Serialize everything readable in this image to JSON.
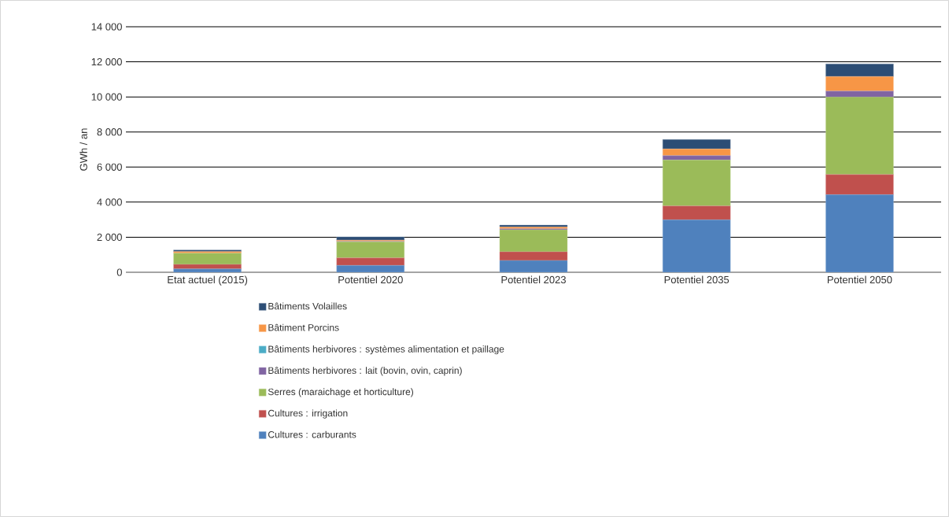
{
  "chart_data": {
    "type": "bar",
    "stacked": true,
    "ylabel": "GWh / an",
    "categories": [
      "Etat actuel (2015)",
      "Potentiel 2020",
      "Potentiel 2023",
      "Potentiel 2035",
      "Potentiel 2050"
    ],
    "series": [
      {
        "name": "Cultures : carburants",
        "color": "#4f81bd",
        "values": [
          190,
          390,
          670,
          2990,
          4430
        ]
      },
      {
        "name": "Cultures : irrigation",
        "color": "#c0504d",
        "values": [
          260,
          430,
          500,
          790,
          1140
        ]
      },
      {
        "name": "Serres (maraichage et horticulture)",
        "color": "#9bbb59",
        "values": [
          640,
          920,
          1250,
          2620,
          4420
        ]
      },
      {
        "name": "Bâtiments herbivores : lait (bovin, ovin, caprin)",
        "color": "#8064a2",
        "values": [
          null,
          20,
          60,
          250,
          340
        ]
      },
      {
        "name": "Bâtiments herbivores : systèmes alimentation et paillage",
        "color": "#4bacc6",
        "values": [
          0,
          0,
          0,
          0,
          0
        ]
      },
      {
        "name": "Bâtiment Porcins",
        "color": "#f79646",
        "values": [
          90,
          70,
          100,
          380,
          830
        ]
      },
      {
        "name": "Bâtiments Volailles",
        "color": "#2c4d75",
        "values": [
          90,
          190,
          110,
          540,
          720
        ]
      }
    ],
    "ylim": [
      0,
      14000
    ],
    "yticks": [
      {
        "value": 0,
        "label": "0"
      },
      {
        "value": 2000,
        "label": "2 000"
      },
      {
        "value": 4000,
        "label": "4 000"
      },
      {
        "value": 6000,
        "label": "6 000"
      },
      {
        "value": 8000,
        "label": "8 000"
      },
      {
        "value": 10000,
        "label": "10 000"
      },
      {
        "value": 12000,
        "label": "12 000"
      },
      {
        "value": 14000,
        "label": "14 000"
      }
    ],
    "grid": "y",
    "legend": "bottom"
  }
}
